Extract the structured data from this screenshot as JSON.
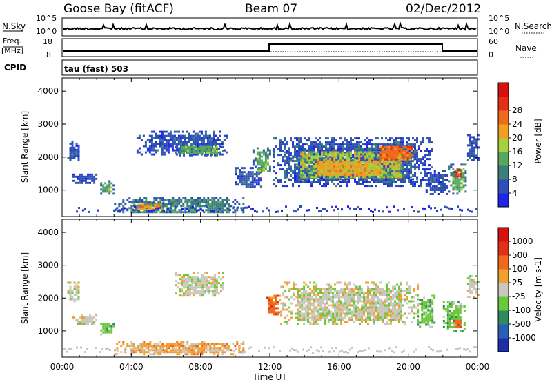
{
  "header": {
    "station": "Goose Bay (fitACF)",
    "beam": "Beam 07",
    "date": "02/Dec/2012"
  },
  "top_panels": {
    "nsky_label": "N.Sky",
    "nsky_ticks": [
      "10^5",
      "10^0"
    ],
    "nsearch_label": "N.Search",
    "nsearch_ticks": [
      "10^5",
      "10^0"
    ],
    "freq_label": "Freq.",
    "freq_unit": "[MHz]",
    "freq_ticks": [
      "18",
      "8"
    ],
    "nave_label": "Nave",
    "nave_ticks": [
      "60",
      "0"
    ],
    "cpid_label": "CPID",
    "cpid_value": "tau (fast) 503"
  },
  "chart_data": [
    {
      "type": "heatmap",
      "name": "power",
      "ylabel": "Slant Range [km]",
      "yticks": [
        "1000",
        "2000",
        "3000",
        "4000"
      ],
      "ylim": [
        200,
        4400
      ],
      "xlim_hours": [
        0,
        24
      ],
      "colorbar": {
        "label": "Power [dB]",
        "ticks": [
          "4",
          "8",
          "12",
          "16",
          "20",
          "24",
          "28"
        ],
        "colors": [
          "#1f24e8",
          "#2e4fb5",
          "#3a7f7a",
          "#56a85e",
          "#a8cf3c",
          "#f0a020",
          "#ef6a1c",
          "#e52f17",
          "#d81010"
        ]
      },
      "regions": [
        {
          "t0": 0.3,
          "t1": 1.0,
          "r0": 1900,
          "r1": 2500,
          "level": 1
        },
        {
          "t0": 0.6,
          "t1": 2.0,
          "r0": 1200,
          "r1": 1500,
          "level": 1
        },
        {
          "t0": 2.2,
          "t1": 3.0,
          "r0": 900,
          "r1": 1300,
          "level": 3
        },
        {
          "t0": 4.3,
          "t1": 9.5,
          "r0": 2100,
          "r1": 2800,
          "level": 1
        },
        {
          "t0": 6.5,
          "t1": 9.3,
          "r0": 2050,
          "r1": 2400,
          "level": 3
        },
        {
          "t0": 3.0,
          "t1": 10.5,
          "r0": 300,
          "r1": 800,
          "level": 2
        },
        {
          "t0": 4.0,
          "t1": 6.0,
          "r0": 400,
          "r1": 650,
          "level": 5
        },
        {
          "t0": 10.0,
          "t1": 11.5,
          "r0": 1100,
          "r1": 1700,
          "level": 1
        },
        {
          "t0": 11.0,
          "t1": 12.0,
          "r0": 1500,
          "r1": 2300,
          "level": 3
        },
        {
          "t0": 12.2,
          "t1": 21.3,
          "r0": 1100,
          "r1": 2600,
          "level": 1
        },
        {
          "t0": 12.8,
          "t1": 20.5,
          "r0": 1300,
          "r1": 2300,
          "level": 4
        },
        {
          "t0": 14.0,
          "t1": 19.0,
          "r0": 1400,
          "r1": 2000,
          "level": 5
        },
        {
          "t0": 18.0,
          "t1": 20.5,
          "r0": 1900,
          "r1": 2400,
          "level": 6
        },
        {
          "t0": 21.0,
          "t1": 22.3,
          "r0": 900,
          "r1": 1600,
          "level": 1
        },
        {
          "t0": 22.3,
          "t1": 23.3,
          "r0": 900,
          "r1": 1800,
          "level": 3
        },
        {
          "t0": 22.6,
          "t1": 23.1,
          "r0": 1400,
          "r1": 1700,
          "level": 7
        },
        {
          "t0": 23.4,
          "t1": 24.0,
          "r0": 1900,
          "r1": 2700,
          "level": 1
        }
      ]
    },
    {
      "type": "heatmap",
      "name": "velocity",
      "ylabel": "Slant Range [km]",
      "yticks": [
        "1000",
        "2000",
        "3000",
        "4000"
      ],
      "ylim": [
        200,
        4400
      ],
      "xlim_hours": [
        0,
        24
      ],
      "xticks": [
        "00:00",
        "04:00",
        "08:00",
        "12:00",
        "16:00",
        "20:00",
        "00:00"
      ],
      "xlabel": "Time UT",
      "colorbar": {
        "label": "Velocity [m s-1]",
        "ticks": [
          "1000",
          "500",
          "100",
          "25",
          "-25",
          "-100",
          "-500",
          "-1000"
        ],
        "colors": [
          "#1c2fa8",
          "#2a5fb8",
          "#2f8a60",
          "#6ac83a",
          "#c8c8c0",
          "#f0a030",
          "#ef6a1c",
          "#e03018",
          "#d81010"
        ]
      },
      "regions": [
        {
          "t0": 0.3,
          "t1": 1.0,
          "r0": 1900,
          "r1": 2500,
          "level": 4
        },
        {
          "t0": 0.6,
          "t1": 2.0,
          "r0": 1200,
          "r1": 1500,
          "level": 4
        },
        {
          "t0": 2.2,
          "t1": 3.0,
          "r0": 900,
          "r1": 1300,
          "level": 3
        },
        {
          "t0": 6.5,
          "t1": 9.3,
          "r0": 2050,
          "r1": 2800,
          "level": 4
        },
        {
          "t0": 3.0,
          "t1": 10.5,
          "r0": 300,
          "r1": 700,
          "level": 5
        },
        {
          "t0": 11.8,
          "t1": 12.6,
          "r0": 1500,
          "r1": 2100,
          "level": 6
        },
        {
          "t0": 12.6,
          "t1": 20.5,
          "r0": 1200,
          "r1": 2500,
          "level": 4
        },
        {
          "t0": 20.5,
          "t1": 21.5,
          "r0": 1100,
          "r1": 2100,
          "level": 3
        },
        {
          "t0": 22.0,
          "t1": 23.2,
          "r0": 1000,
          "r1": 1900,
          "level": 3
        },
        {
          "t0": 22.6,
          "t1": 23.0,
          "r0": 1100,
          "r1": 1400,
          "level": 6
        },
        {
          "t0": 23.4,
          "t1": 24.0,
          "r0": 2000,
          "r1": 2700,
          "level": 4
        }
      ]
    }
  ]
}
